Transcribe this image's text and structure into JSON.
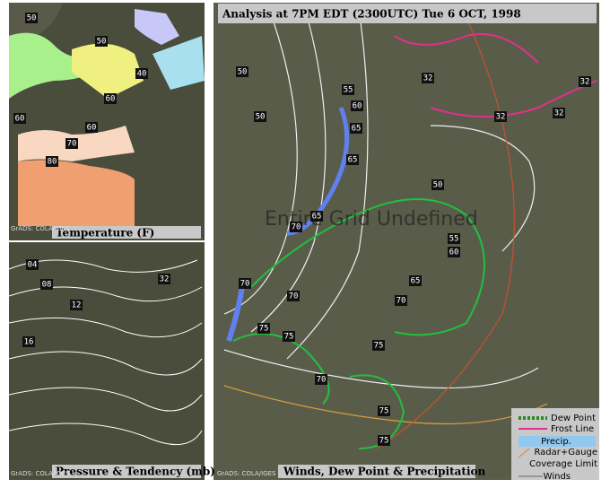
{
  "header": {
    "title": "Analysis at 7PM EDT (2300UTC) Tue 6 OCT, 1998"
  },
  "overlay": "Entire Grid Undefined",
  "panels": [
    {
      "label": "Temperature (F)",
      "credit": "GrADS: COLA/IGES",
      "contour_labels": [
        "50",
        "50",
        "40",
        "60",
        "60",
        "60",
        "70",
        "80"
      ]
    },
    {
      "label": "Pressure & Tendency (mb)",
      "credit": "GrADS: COLA/IGES",
      "contour_labels": [
        "04",
        "08",
        "12",
        "16",
        "32"
      ]
    },
    {
      "label": "Winds, Dew Point & Precipitation",
      "credit": "GrADS: COLA/IGES",
      "contour_labels": [
        "50",
        "50",
        "55",
        "60",
        "65",
        "32",
        "32",
        "32",
        "32",
        "65",
        "50",
        "65",
        "70",
        "55",
        "60",
        "65",
        "70",
        "70",
        "70",
        "75",
        "75",
        "75",
        "70",
        "75",
        "75"
      ]
    }
  ],
  "legend": [
    "Dew Point",
    "Frost Line",
    "Precip.",
    "Radar+Gauge",
    "Coverage Limit",
    "Winds"
  ]
}
